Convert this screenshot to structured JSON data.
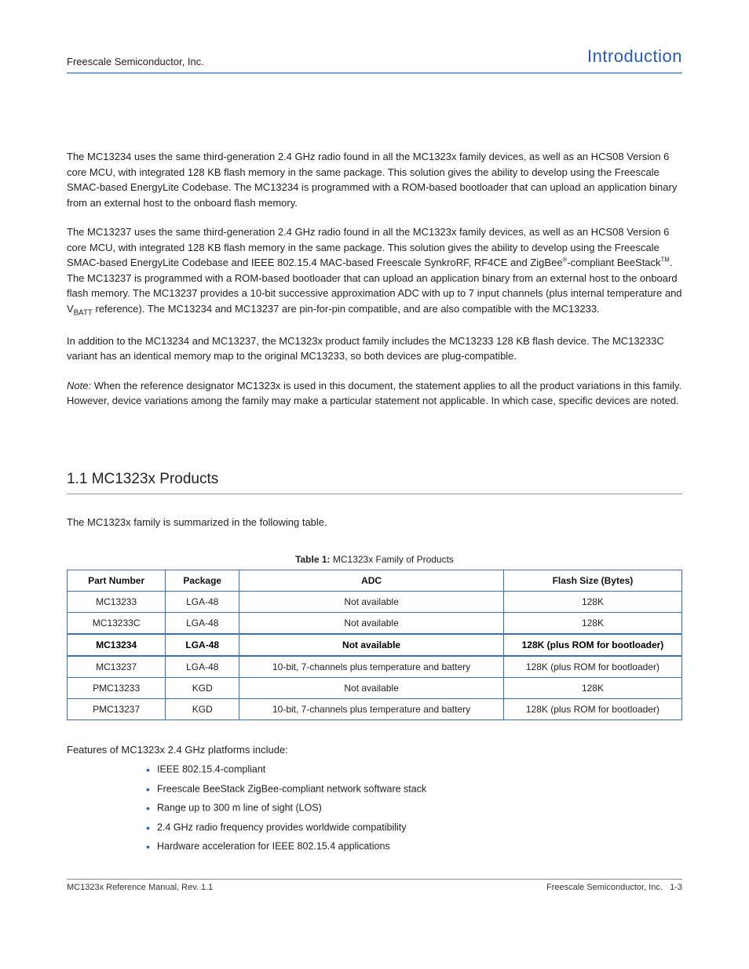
{
  "colors": {
    "accent": "#2a5caa",
    "tableBorder": "#3b6fb6",
    "headerRule": "#7aa6dc"
  },
  "header": {
    "left": "Freescale Semiconductor, Inc.",
    "right": "Introduction"
  },
  "paragraphs": {
    "p1_html": "The MC13234 uses the same third-generation 2.4 GHz radio found in all the MC1323x family devices, as well as an HCS08 Version 6 core MCU, with integrated 128 KB flash memory in the same package. This solution gives the ability to develop using the Freescale SMAC-based EnergyLite Codebase. The MC13234 is programmed with a ROM-based bootloader that can upload an application binary from an external host to the onboard flash memory.",
    "p2_html": "The MC13237 uses the same third-generation 2.4 GHz radio found in all the MC1323x family devices, as well as an HCS08 Version 6 core MCU, with integrated 128 KB flash memory in the same package. This solution gives the ability to develop using the Freescale SMAC-based EnergyLite Codebase and IEEE 802.15.4 MAC-based Freescale SynkroRF, RF4CE and ZigBee<span class=\"super\">®</span>-compliant BeeStack<span class=\"super\">TM</span>. The MC13237 is programmed with a ROM-based bootloader that can upload an application binary from an external host to the onboard flash memory. The MC13237 provides a 10-bit successive approximation ADC with up to 7 input channels (plus internal temperature and V<span class=\"sub\">BATT</span> reference). The MC13234 and MC13237 are pin-for-pin compatible, and are also compatible with the MC13233.",
    "p3_html": "In addition to the MC13234 and MC13237, the MC1323x product family includes the MC13233 128 KB flash device. The MC13233C variant has an identical memory map to the original MC13233, so both devices are plug-compatible."
  },
  "note_html": "<span class=\"italic\">Note:</span> When the reference designator MC1323x is used in this document, the statement applies to all the product variations in this family. However, device variations among the family may make a particular statement not applicable. In which case, specific devices are noted.",
  "section_heading": "1.1  MC1323x Products",
  "intro_text": "The MC1323x family is summarized in the following table.",
  "table": {
    "caption_bold": "Table 1:",
    "caption_rest": " MC1323x Family of Products",
    "columns": [
      {
        "key": "part",
        "label": "Part Number",
        "width": "16%"
      },
      {
        "key": "pkg",
        "label": "Package",
        "width": "12%"
      },
      {
        "key": "adc",
        "label": "ADC",
        "width": "43%"
      },
      {
        "key": "flash",
        "label": "Flash Size (Bytes)",
        "width": "29%"
      }
    ],
    "rows": [
      {
        "part": "MC13233",
        "pkg": "LGA-48",
        "adc": "Not available",
        "flash": "128K",
        "highlight": false
      },
      {
        "part": "MC13233C",
        "pkg": "LGA-48",
        "adc": "Not available",
        "flash": "128K",
        "highlight": false
      },
      {
        "part": "MC13234",
        "pkg": "LGA-48",
        "adc": "Not available",
        "flash": "128K (plus ROM for bootloader)",
        "highlight": true
      },
      {
        "part": "MC13237",
        "pkg": "LGA-48",
        "adc": "10-bit, 7-channels plus temperature and battery",
        "flash": "128K (plus ROM for bootloader)",
        "highlight": false
      },
      {
        "part": "PMC13233",
        "pkg": "KGD",
        "adc": "Not available",
        "flash": "128K",
        "highlight": false
      },
      {
        "part": "PMC13237",
        "pkg": "KGD",
        "adc": "10-bit, 7-channels plus temperature and battery",
        "flash": "128K (plus ROM for bootloader)",
        "highlight": false
      }
    ]
  },
  "list_lead": "Features of MC1323x 2.4 GHz platforms include:",
  "features": [
    "IEEE 802.15.4-compliant",
    "Freescale BeeStack ZigBee-compliant network software stack",
    "Range up to 300 m line of sight (LOS)",
    "2.4 GHz radio frequency provides worldwide compatibility",
    "Hardware acceleration for IEEE 802.15.4 applications"
  ],
  "footer": {
    "left": "MC1323x Reference Manual, Rev. 1.1",
    "right_label": "Freescale Semiconductor, Inc.",
    "page": "1-3"
  }
}
